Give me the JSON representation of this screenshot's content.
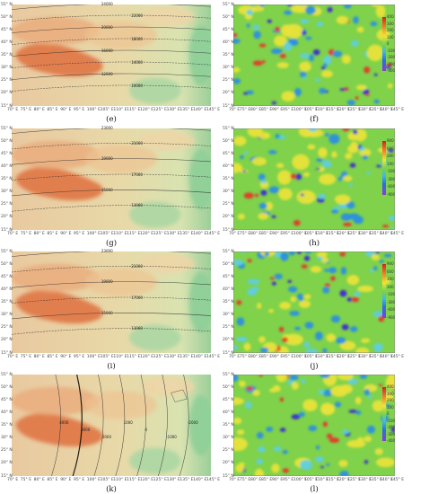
{
  "lon_ticks": [
    "70° E",
    "75° E",
    "80° E",
    "85° E",
    "90° E",
    "95° E",
    "100° E",
    "105° E",
    "110° E",
    "115° E",
    "120° E",
    "125° E",
    "130° E",
    "135° E",
    "140° E",
    "145° E"
  ],
  "lat_ticks": [
    "55° N",
    "50° N",
    "45° N",
    "40° N",
    "35° N",
    "30° N",
    "25° N",
    "20° N",
    "15° N"
  ],
  "panels": [
    {
      "caption": "(e)",
      "kind": "terrain",
      "contours": [
        "24000",
        "22000",
        "20000",
        "18000",
        "16000",
        "14000",
        "12000",
        "10000"
      ]
    },
    {
      "caption": "(f)",
      "kind": "anomaly",
      "legend": [
        "400",
        "300",
        "200",
        "100",
        "0",
        "-100",
        "-200",
        "-300",
        "-400"
      ]
    },
    {
      "caption": "(g)",
      "kind": "terrain",
      "contours": [
        "23000",
        "21000",
        "19000",
        "17000",
        "15000",
        "13000"
      ]
    },
    {
      "caption": "(h)",
      "kind": "anomaly",
      "legend": [
        "900",
        "600",
        "300",
        "100",
        "-100",
        "-300",
        "-600",
        "-900"
      ]
    },
    {
      "caption": "(i)",
      "kind": "terrain",
      "contours": [
        "23000",
        "21000",
        "19000",
        "17000",
        "15000",
        "13000"
      ]
    },
    {
      "caption": "(j)",
      "kind": "anomaly",
      "legend": [
        "900",
        "600",
        "300",
        "100",
        "-100",
        "-300",
        "-600",
        "-900"
      ]
    },
    {
      "caption": "(k)",
      "kind": "terrain",
      "contours": [
        "4000",
        "3000",
        "2000",
        "1000",
        "0",
        "-1000",
        "-2000"
      ]
    },
    {
      "caption": "(l)",
      "kind": "anomaly",
      "legend": [
        "400",
        "300",
        "200",
        "100",
        "0",
        "-100",
        "-200",
        "-300",
        "-400"
      ]
    }
  ],
  "colors": {
    "terrain_low": "#e8d9a8",
    "terrain_high": "#e07a4a",
    "terrain_green": "#9ccf9a",
    "anomaly_base": "#7fd24a",
    "anomaly_pos": "#e8e33a",
    "anomaly_hot": "#e33a2a",
    "anomaly_neg": "#2b8fe0",
    "anomaly_cold": "#3b2bd0",
    "contour": "#333333"
  }
}
